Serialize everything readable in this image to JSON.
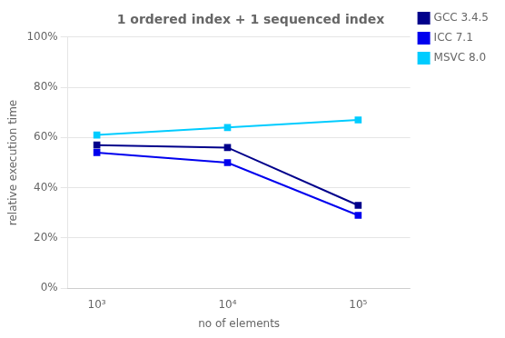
{
  "chart_data": {
    "type": "line",
    "title": "1 ordered index + 1 sequenced index",
    "xlabel": "no of elements",
    "ylabel": "relative execution time",
    "x": [
      1000,
      10000,
      100000
    ],
    "series": [
      {
        "name": "GCC 3.4.5",
        "color": "#00008B",
        "marker": "square",
        "values": [
          0.57,
          0.56,
          0.33
        ]
      },
      {
        "name": "ICC 7.1",
        "color": "#0000EE",
        "marker": "square",
        "values": [
          0.54,
          0.5,
          0.29
        ]
      },
      {
        "name": "MSVC 8.0",
        "color": "#00CCFF",
        "marker": "square",
        "values": [
          0.61,
          0.64,
          0.67
        ]
      }
    ],
    "log": "x",
    "xlim": [
      600,
      250000
    ],
    "xticks": [
      {
        "value": 1000,
        "label": "10³"
      },
      {
        "value": 10000,
        "label": "10⁴"
      },
      {
        "value": 100000,
        "label": "10⁵"
      }
    ],
    "ylim": [
      0.0,
      1.0
    ],
    "yticks": [
      {
        "value": 0.0,
        "label": "0%"
      },
      {
        "value": 0.2,
        "label": "20%"
      },
      {
        "value": 0.4,
        "label": "40%"
      },
      {
        "value": 0.6,
        "label": "60%"
      },
      {
        "value": 0.8,
        "label": "80%"
      },
      {
        "value": 1.0,
        "label": "100%"
      }
    ],
    "grid": "y",
    "legend": "right"
  }
}
